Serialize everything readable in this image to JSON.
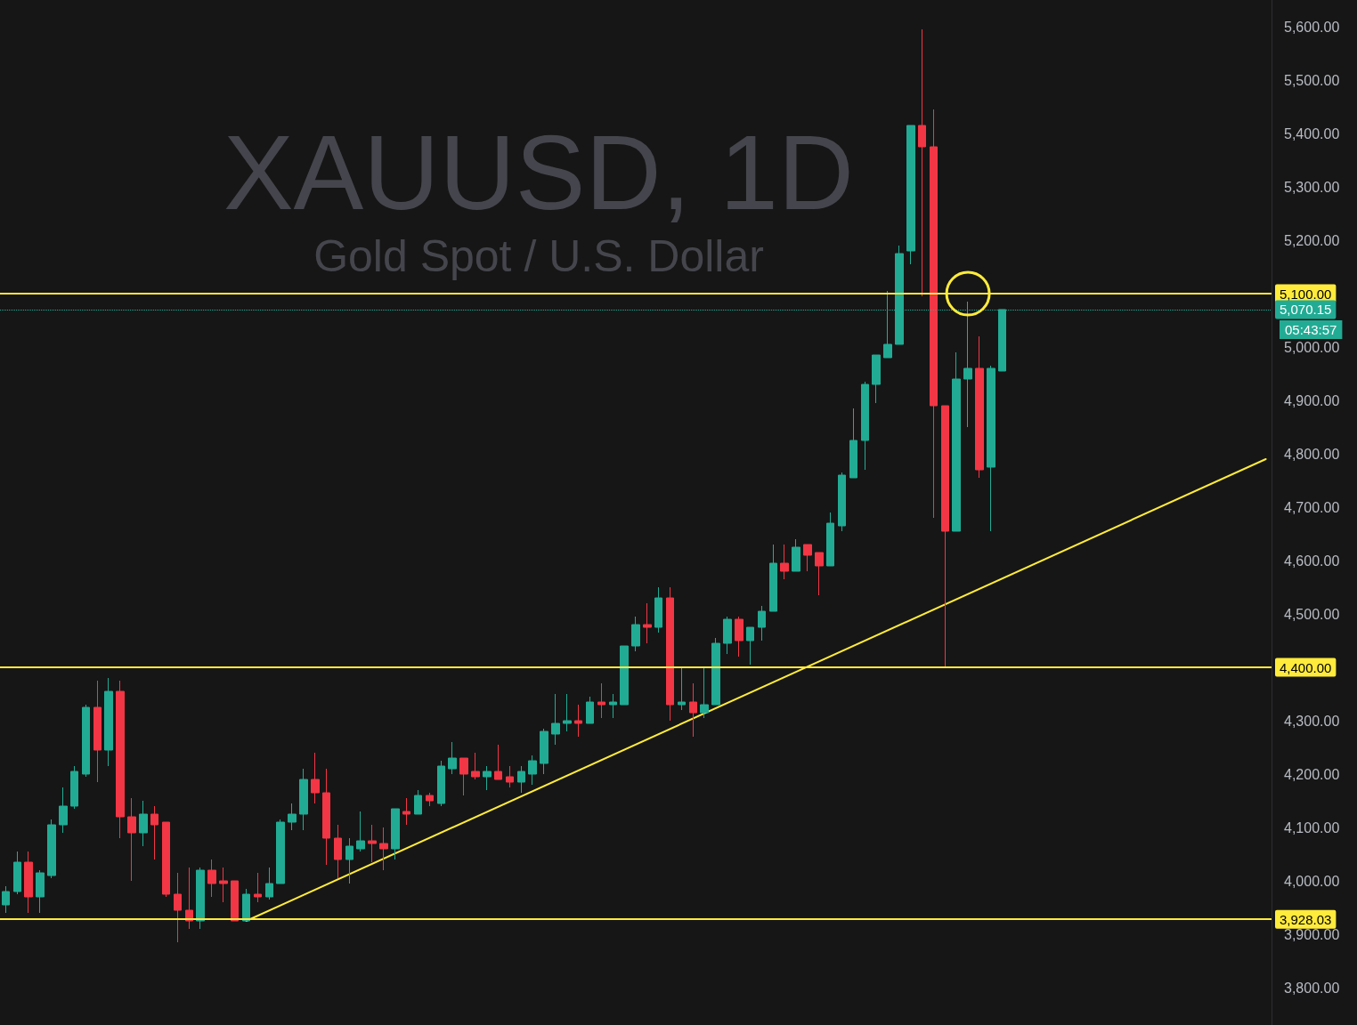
{
  "chart_data": {
    "type": "candlestick",
    "title": "XAUUSD, 1D",
    "subtitle": "Gold Spot / U.S. Dollar",
    "categories": [
      null,
      null,
      null,
      null,
      null,
      null,
      null,
      null,
      null,
      null,
      null,
      null,
      null,
      null,
      null,
      null,
      null,
      null,
      null,
      null,
      null,
      null,
      null,
      null,
      null,
      null,
      null,
      null,
      null,
      null,
      null,
      null,
      null,
      null,
      null,
      null,
      null,
      null,
      null,
      null,
      null,
      null,
      null,
      null,
      null,
      null,
      null,
      null,
      null,
      null,
      null,
      null,
      null,
      null,
      null,
      null,
      null,
      null,
      null,
      null,
      null,
      null,
      null,
      null,
      null,
      null,
      null,
      null,
      null,
      null,
      null,
      null,
      null,
      null,
      null,
      null,
      null,
      null,
      null,
      null,
      null,
      null,
      null,
      null,
      null,
      null,
      null,
      null,
      null,
      null,
      null,
      null,
      null,
      null,
      null,
      null,
      null,
      null,
      null,
      null,
      null,
      null,
      null,
      null,
      null,
      null,
      null,
      null,
      null,
      null,
      null
    ],
    "ohlc": [
      [
        3955,
        3990,
        3940,
        3980
      ],
      [
        3980,
        4055,
        3975,
        4035
      ],
      [
        4035,
        4055,
        3940,
        3970
      ],
      [
        3970,
        4020,
        3940,
        4015
      ],
      [
        4010,
        4115,
        4005,
        4105
      ],
      [
        4105,
        4175,
        4090,
        4140
      ],
      [
        4140,
        4215,
        4135,
        4205
      ],
      [
        4200,
        4330,
        4195,
        4325
      ],
      [
        4325,
        4375,
        4185,
        4245
      ],
      [
        4245,
        4380,
        4215,
        4355
      ],
      [
        4355,
        4375,
        4080,
        4120
      ],
      [
        4120,
        4155,
        4000,
        4090
      ],
      [
        4090,
        4150,
        4065,
        4125
      ],
      [
        4125,
        4140,
        4040,
        4105
      ],
      [
        4110,
        4110,
        3970,
        3975
      ],
      [
        3975,
        4015,
        3885,
        3945
      ],
      [
        3945,
        4025,
        3910,
        3925
      ],
      [
        3925,
        4025,
        3910,
        4020
      ],
      [
        4020,
        4040,
        3970,
        3995
      ],
      [
        4000,
        4025,
        3960,
        3995
      ],
      [
        4000,
        4000,
        3925,
        3925
      ],
      [
        3925,
        3985,
        3925,
        3975
      ],
      [
        3975,
        4015,
        3960,
        3970
      ],
      [
        3970,
        4025,
        3965,
        3995
      ],
      [
        3995,
        4115,
        3995,
        4110
      ],
      [
        4110,
        4145,
        4095,
        4125
      ],
      [
        4125,
        4210,
        4095,
        4190
      ],
      [
        4190,
        4240,
        4145,
        4165
      ],
      [
        4165,
        4210,
        4030,
        4080
      ],
      [
        4080,
        4105,
        4005,
        4040
      ],
      [
        4040,
        4080,
        3995,
        4065
      ],
      [
        4060,
        4130,
        4055,
        4075
      ],
      [
        4075,
        4105,
        4035,
        4070
      ],
      [
        4070,
        4100,
        4020,
        4060
      ],
      [
        4060,
        4135,
        4040,
        4135
      ],
      [
        4130,
        4155,
        4105,
        4125
      ],
      [
        4125,
        4170,
        4125,
        4160
      ],
      [
        4160,
        4165,
        4140,
        4150
      ],
      [
        4145,
        4225,
        4140,
        4215
      ],
      [
        4210,
        4260,
        4200,
        4230
      ],
      [
        4230,
        4230,
        4160,
        4200
      ],
      [
        4205,
        4240,
        4190,
        4195
      ],
      [
        4195,
        4215,
        4170,
        4205
      ],
      [
        4205,
        4255,
        4190,
        4190
      ],
      [
        4195,
        4215,
        4175,
        4185
      ],
      [
        4185,
        4215,
        4165,
        4205
      ],
      [
        4200,
        4235,
        4180,
        4225
      ],
      [
        4220,
        4285,
        4200,
        4280
      ],
      [
        4275,
        4350,
        4255,
        4295
      ],
      [
        4295,
        4350,
        4280,
        4300
      ],
      [
        4300,
        4330,
        4270,
        4295
      ],
      [
        4295,
        4345,
        4295,
        4335
      ],
      [
        4335,
        4370,
        4305,
        4330
      ],
      [
        4330,
        4350,
        4305,
        4335
      ],
      [
        4330,
        4440,
        4330,
        4440
      ],
      [
        4440,
        4495,
        4430,
        4480
      ],
      [
        4480,
        4520,
        4445,
        4475
      ],
      [
        4475,
        4550,
        4465,
        4530
      ],
      [
        4530,
        4550,
        4300,
        4330
      ],
      [
        4330,
        4400,
        4320,
        4335
      ],
      [
        4335,
        4370,
        4270,
        4315
      ],
      [
        4315,
        4400,
        4305,
        4330
      ],
      [
        4330,
        4455,
        4330,
        4445
      ],
      [
        4445,
        4495,
        4425,
        4490
      ],
      [
        4490,
        4495,
        4420,
        4450
      ],
      [
        4450,
        4475,
        4405,
        4475
      ],
      [
        4475,
        4515,
        4450,
        4505
      ],
      [
        4505,
        4630,
        4505,
        4595
      ],
      [
        4595,
        4630,
        4565,
        4580
      ],
      [
        4580,
        4640,
        4580,
        4625
      ],
      [
        4630,
        4630,
        4580,
        4610
      ],
      [
        4615,
        4615,
        4535,
        4590
      ],
      [
        4590,
        4690,
        4590,
        4670
      ],
      [
        4665,
        4765,
        4655,
        4760
      ],
      [
        4755,
        4885,
        4755,
        4825
      ],
      [
        4825,
        4935,
        4770,
        4930
      ],
      [
        4930,
        4985,
        4895,
        4985
      ],
      [
        4980,
        5105,
        4980,
        5005
      ],
      [
        5005,
        5190,
        5005,
        5175
      ],
      [
        5180,
        5415,
        5155,
        5415
      ],
      [
        5415,
        5595,
        5095,
        5375
      ],
      [
        5375,
        5445,
        4680,
        4890
      ],
      [
        4890,
        4890,
        4400,
        4655
      ],
      [
        4655,
        4990,
        4655,
        4940
      ],
      [
        4940,
        5085,
        4850,
        4960
      ],
      [
        4960,
        5020,
        4755,
        4770
      ],
      [
        4775,
        4965,
        4655,
        4960
      ],
      [
        4955,
        5070.15,
        4955,
        5070.15
      ],
      null,
      null,
      null,
      null,
      null,
      null,
      null,
      null,
      null,
      null,
      null,
      null,
      null,
      null,
      null,
      null,
      null,
      null,
      null,
      null,
      null,
      null,
      null
    ],
    "colors": [
      "#22ab94",
      "#22ab94",
      "#f23645",
      "#22ab94",
      "#22ab94",
      "#22ab94",
      "#22ab94",
      "#22ab94",
      "#f23645",
      "#22ab94",
      "#f23645",
      "#f23645",
      "#22ab94",
      "#f23645",
      "#f23645",
      "#f23645",
      "#f23645",
      "#22ab94",
      "#f23645",
      "#f23645",
      "#f23645",
      "#22ab94",
      "#f23645",
      "#22ab94",
      "#22ab94",
      "#22ab94",
      "#22ab94",
      "#f23645",
      "#f23645",
      "#f23645",
      "#22ab94",
      "#22ab94",
      "#f23645",
      "#f23645",
      "#22ab94",
      "#f23645",
      "#22ab94",
      "#f23645",
      "#22ab94",
      "#22ab94",
      "#f23645",
      "#f23645",
      "#22ab94",
      "#f23645",
      "#f23645",
      "#22ab94",
      "#22ab94",
      "#22ab94",
      "#22ab94",
      "#22ab94",
      "#f23645",
      "#22ab94",
      "#f23645",
      "#22ab94",
      "#22ab94",
      "#22ab94",
      "#f23645",
      "#22ab94",
      "#f23645",
      "#22ab94",
      "#f23645",
      "#22ab94",
      "#22ab94",
      "#22ab94",
      "#f23645",
      "#22ab94",
      "#22ab94",
      "#22ab94",
      "#f23645",
      "#22ab94",
      "#f23645",
      "#f23645",
      "#22ab94",
      "#22ab94",
      "#22ab94",
      "#22ab94",
      "#22ab94",
      "#22ab94",
      "#22ab94",
      "#22ab94",
      "#f23645",
      "#f23645",
      "#f23645",
      "#22ab94",
      "#22ab94",
      "#f23645",
      "#22ab94",
      "#22ab94",
      null,
      null,
      null,
      null,
      null,
      null,
      null,
      null,
      null,
      null,
      null,
      null,
      null,
      null,
      null,
      null,
      null,
      null,
      null,
      null,
      null,
      null,
      null
    ],
    "ylim": [
      3730,
      5650
    ],
    "yticks": [
      {
        "value": 3800,
        "label": "3,800.00"
      },
      {
        "value": 3900,
        "label": "3,900.00"
      },
      {
        "value": 4000,
        "label": "4,000.00"
      },
      {
        "value": 4100,
        "label": "4,100.00"
      },
      {
        "value": 4200,
        "label": "4,200.00"
      },
      {
        "value": 4300,
        "label": "4,300.00"
      },
      {
        "value": 4400,
        "label": null
      },
      {
        "value": 4500,
        "label": "4,500.00"
      },
      {
        "value": 4600,
        "label": "4,600.00"
      },
      {
        "value": 4700,
        "label": "4,700.00"
      },
      {
        "value": 4800,
        "label": "4,800.00"
      },
      {
        "value": 4900,
        "label": "4,900.00"
      },
      {
        "value": 5000,
        "label": "5,000.00"
      },
      {
        "value": 5100,
        "label": null
      },
      {
        "value": 5200,
        "label": "5,200.00"
      },
      {
        "value": 5300,
        "label": "5,300.00"
      },
      {
        "value": 5400,
        "label": "5,400.00"
      },
      {
        "value": 5500,
        "label": "5,500.00"
      },
      {
        "value": 5600,
        "label": "5,600.00"
      }
    ],
    "tick_labels": "y",
    "ref_lines": [
      {
        "axis": "y",
        "value": 5100,
        "label": "5,100.00",
        "color": "#ffeb3b",
        "line_style": "solid"
      },
      {
        "axis": "y",
        "value": 4400,
        "label": "4,400.00",
        "color": "#ffeb3b",
        "line_style": "solid"
      },
      {
        "axis": "y",
        "value": 3928.03,
        "label": "3,928.03",
        "color": "#ffeb3b",
        "line_style": "solid"
      },
      {
        "axis": "y",
        "value": 5070.15,
        "label": "5,070.15",
        "color": "#22ab94",
        "line_style": "dotted"
      }
    ],
    "annotations": [
      "05:43:57"
    ],
    "series": [
      {
        "type": "line",
        "color": "#ffeb3b",
        "marker": "none",
        "values": [
          null,
          null,
          null,
          null,
          null,
          null,
          null,
          null,
          null,
          null,
          null,
          null,
          null,
          null,
          null,
          null,
          null,
          null,
          null,
          null,
          null,
          3925,
          null,
          null,
          null,
          null,
          null,
          null,
          null,
          null,
          null,
          null,
          null,
          null,
          null,
          null,
          null,
          null,
          null,
          null,
          null,
          null,
          null,
          null,
          null,
          null,
          null,
          null,
          null,
          null,
          null,
          null,
          null,
          null,
          null,
          null,
          null,
          null,
          null,
          null,
          null,
          null,
          null,
          null,
          null,
          null,
          null,
          null,
          null,
          null,
          null,
          null,
          null,
          null,
          null,
          null,
          null,
          null,
          null,
          null,
          null,
          null,
          null,
          null,
          null,
          null,
          null,
          null,
          null,
          null,
          null,
          null,
          null,
          null,
          null,
          null,
          null,
          null,
          null,
          null,
          null,
          null,
          null,
          null,
          null,
          null,
          null,
          null,
          null,
          null,
          4790
        ]
      }
    ]
  }
}
